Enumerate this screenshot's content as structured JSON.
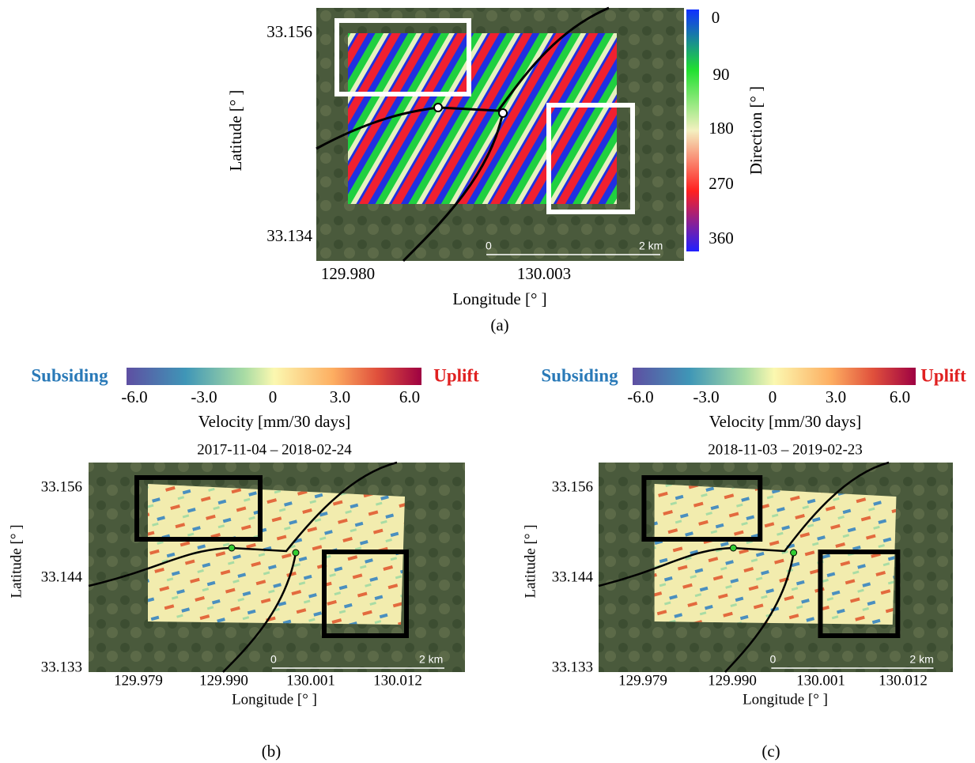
{
  "panel_a": {
    "lat_ticks": [
      "33.156",
      "33.134"
    ],
    "lon_ticks": [
      "129.980",
      "130.003"
    ],
    "y_label": "Latitude [°  ]",
    "x_label": "Longitude [°  ]",
    "colorbar": {
      "ticks": [
        "0",
        "90",
        "180",
        "270",
        "360"
      ],
      "label": "Direction [°  ]"
    },
    "scale": {
      "start": "0",
      "end": "2 km"
    },
    "caption": "(a)"
  },
  "panel_b": {
    "colorbar": {
      "left": "Subsiding",
      "right": "Uplift",
      "ticks": [
        "-6.0",
        "-3.0",
        "0",
        "3.0",
        "6.0"
      ],
      "label": "Velocity [mm/30 days]"
    },
    "date": "2017-11-04 – 2018-02-24",
    "lat_ticks": [
      "33.156",
      "33.144",
      "33.133"
    ],
    "lon_ticks": [
      "129.979",
      "129.990",
      "130.001",
      "130.012"
    ],
    "y_label": "Latitude [°  ]",
    "x_label": "Longitude [°  ]",
    "scale": {
      "start": "0",
      "end": "2 km"
    },
    "caption": "(b)"
  },
  "panel_c": {
    "colorbar": {
      "left": "Subsiding",
      "right": "Uplift",
      "ticks": [
        "-6.0",
        "-3.0",
        "0",
        "3.0",
        "6.0"
      ],
      "label": "Velocity [mm/30 days]"
    },
    "date": "2018-11-03 – 2019-02-23",
    "lat_ticks": [
      "33.156",
      "33.144",
      "33.133"
    ],
    "lon_ticks": [
      "129.979",
      "129.990",
      "130.001",
      "130.012"
    ],
    "y_label": "Latitude [°  ]",
    "x_label": "Longitude [°  ]",
    "scale": {
      "start": "0",
      "end": "2 km"
    },
    "caption": "(c)"
  }
}
